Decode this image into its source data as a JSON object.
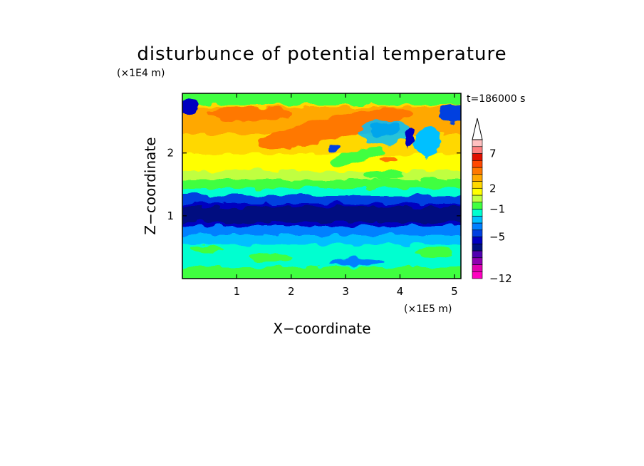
{
  "chart_data": {
    "type": "heatmap",
    "title": "disturbunce of potential temperature",
    "xlabel": "X−coordinate",
    "ylabel": "Z−coordinate",
    "x_unit_label": "(×1E5 m)",
    "y_unit_label": "(×1E4 m)",
    "time_label": "t=186000 s",
    "xlim": [
      0,
      5.12
    ],
    "ylim": [
      0,
      2.95
    ],
    "x_ticks": [
      "1",
      "2",
      "3",
      "4",
      "5"
    ],
    "x_tick_values": [
      1,
      2,
      3,
      4,
      5
    ],
    "y_ticks": [
      "1",
      "2"
    ],
    "y_tick_values": [
      1,
      2
    ],
    "colorbar": {
      "extend": "max",
      "labels": [
        "7",
        "2",
        "−1",
        "−5",
        "−12"
      ],
      "label_values": [
        7,
        2,
        -1,
        -5,
        -12
      ],
      "levels": [
        -12,
        -11,
        -10,
        -8,
        -7,
        -6,
        -5,
        -4,
        -3,
        -2,
        -1,
        0,
        1,
        2,
        3,
        4,
        5,
        6,
        7,
        8,
        9,
        10
      ],
      "colors": [
        "#ff00c0",
        "#e000b0",
        "#9000b0",
        "#5000b0",
        "#001080",
        "#0000c0",
        "#0040e0",
        "#0080ff",
        "#00c0ff",
        "#00ffd0",
        "#40ff40",
        "#c0ff40",
        "#ffff00",
        "#ffd800",
        "#ffa800",
        "#ff7800",
        "#ff4800",
        "#e01000",
        "#ff8080",
        "#ffc0c0",
        "#ffffff"
      ]
    },
    "layers": [
      {
        "z": [
          0.0,
          0.1
        ],
        "description_value": 0
      },
      {
        "z": [
          0.1,
          0.5
        ],
        "value": -2
      },
      {
        "z": [
          0.5,
          0.95
        ],
        "value": -4
      },
      {
        "z": [
          0.95,
          1.25
        ],
        "value": -4.5
      },
      {
        "z": [
          1.25,
          1.45
        ],
        "value": -2
      },
      {
        "z": [
          1.45,
          1.75
        ],
        "value": 0
      },
      {
        "z": [
          1.75,
          2.4
        ],
        "value": 2.5
      },
      {
        "z": [
          2.4,
          2.95
        ],
        "value": 3.5
      }
    ]
  }
}
